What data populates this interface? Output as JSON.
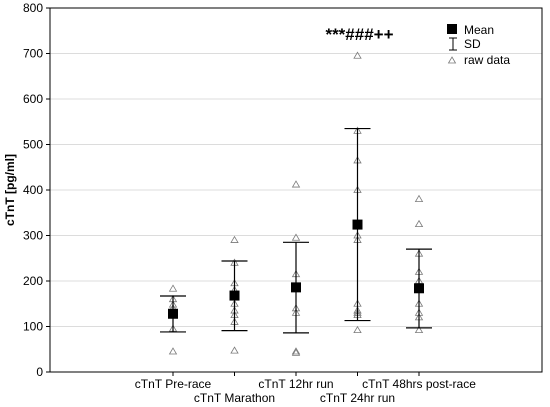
{
  "chart_data": {
    "type": "scatter",
    "title": "",
    "xlabel": "",
    "ylabel": "cTnT [pg/ml]",
    "ylim": [
      0,
      800
    ],
    "yticks": [
      0,
      100,
      200,
      300,
      400,
      500,
      600,
      700,
      800
    ],
    "grid": true,
    "legend_position": "top-right",
    "categories": [
      "cTnT Pre-race",
      "cTnT Marathon",
      "cTnT 12hr run",
      "cTnT 24hr run",
      "cTnT 48hrs post-race"
    ],
    "series": [
      {
        "name": "Mean",
        "values": [
          128,
          168,
          186,
          324,
          184
        ]
      },
      {
        "name": "SD",
        "lower": [
          88,
          91,
          86,
          113,
          97
        ],
        "upper": [
          167,
          244,
          285,
          535,
          270
        ]
      },
      {
        "name": "raw data",
        "points": [
          [
            45,
            95,
            140,
            148,
            160,
            183
          ],
          [
            47,
            110,
            125,
            135,
            150,
            180,
            195,
            240,
            290
          ],
          [
            42,
            45,
            130,
            140,
            215,
            295,
            412
          ],
          [
            92,
            125,
            130,
            135,
            150,
            290,
            300,
            400,
            465,
            530,
            695
          ],
          [
            92,
            120,
            130,
            150,
            200,
            220,
            260,
            325,
            380
          ]
        ]
      }
    ],
    "annotations": [
      {
        "text": "***###++",
        "category_index": 3
      }
    ]
  },
  "legend": {
    "mean_label": "Mean",
    "sd_label": "SD",
    "raw_label": "raw data"
  },
  "colors": {
    "mean": "#000000",
    "error_bar": "#000000",
    "raw": "#7a7a7a",
    "grid": "#dcdcdc",
    "axis": "#000000"
  }
}
